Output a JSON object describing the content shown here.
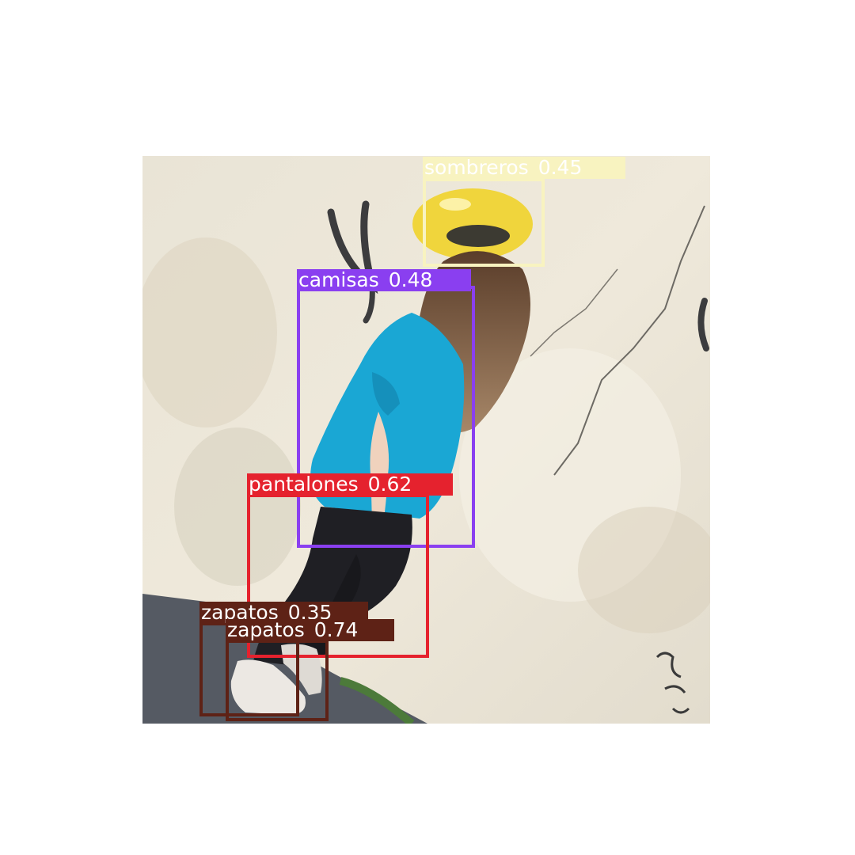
{
  "scene": {
    "wall_color": "#e8e2d4",
    "shirt_color": "#1aa7d4",
    "pants_color": "#1f1f24",
    "hair_color": "#6e4a31",
    "halo_color": "#f0d53c",
    "shoe_color": "#ece8e3",
    "ground_color": "#545962"
  },
  "detections": [
    {
      "label": "sombreros",
      "score": "0.45",
      "color": "#f8f3c0",
      "text_color": "#ffffff"
    },
    {
      "label": "camisas",
      "score": "0.48",
      "color": "#8a3ff0",
      "text_color": "#ffffff"
    },
    {
      "label": "pantalones",
      "score": "0.62",
      "color": "#e5222e",
      "text_color": "#ffffff"
    },
    {
      "label": "zapatos",
      "score": "0.35",
      "color": "#5e2216",
      "text_color": "#ffffff"
    },
    {
      "label": "zapatos",
      "score": "0.74",
      "color": "#5e2216",
      "text_color": "#ffffff"
    }
  ]
}
